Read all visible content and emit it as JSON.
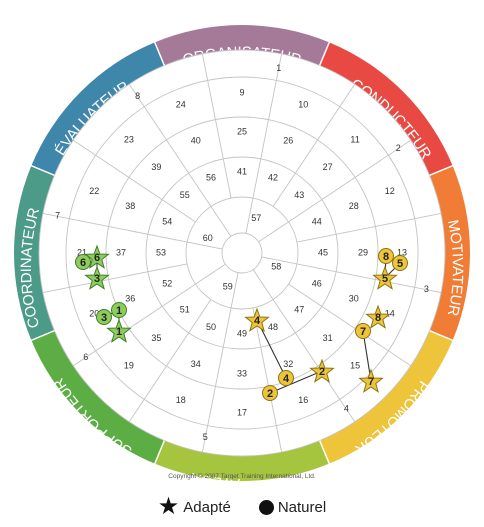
{
  "wheel": {
    "segments": [
      {
        "label": "ORGANISATEUR",
        "color": "#a47a98"
      },
      {
        "label": "CONDUCTEUR",
        "color": "#e84a43"
      },
      {
        "label": "MOTIVATEUR",
        "color": "#f07c35"
      },
      {
        "label": "PROMOTEUR",
        "color": "#eec43a"
      },
      {
        "label": "FACILITATEUR",
        "color": "#a6c53f"
      },
      {
        "label": "SUPPORTEUR",
        "color": "#5cae44"
      },
      {
        "label": "COORDINATEUR",
        "color": "#4c9a88"
      },
      {
        "label": "ÉVALUATEUR",
        "color": "#3f86ab"
      }
    ],
    "copyright": "Copyright © 2007 Target Training International, Ltd.",
    "position_numbers": {
      "ring4": [
        "1",
        "2",
        "3",
        "4",
        "5",
        "6",
        "7",
        "8"
      ],
      "ring3": [
        "9",
        "10",
        "11",
        "12",
        "13",
        "14",
        "15",
        "16",
        "17",
        "18",
        "19",
        "20",
        "21",
        "22",
        "23",
        "24"
      ],
      "ring2": [
        "25",
        "26",
        "27",
        "28",
        "29",
        "30",
        "31",
        "32",
        "33",
        "34",
        "35",
        "36",
        "37",
        "38",
        "39",
        "40"
      ],
      "ring1": [
        "41",
        "42",
        "43",
        "44",
        "45",
        "46",
        "47",
        "48",
        "49",
        "50",
        "51",
        "52",
        "53",
        "54",
        "55",
        "56"
      ],
      "core": [
        "57",
        "58",
        "59",
        "60"
      ]
    },
    "adapted_color": "#eec43a",
    "natural_color": "#8ecc5c"
  },
  "markers": {
    "yellow": [
      {
        "n": "8",
        "shape": "circle"
      },
      {
        "n": "5",
        "shape": "circle"
      },
      {
        "n": "5",
        "shape": "star"
      },
      {
        "n": "8",
        "shape": "star"
      },
      {
        "n": "7",
        "shape": "circle"
      },
      {
        "n": "7",
        "shape": "star"
      },
      {
        "n": "4",
        "shape": "star"
      },
      {
        "n": "4",
        "shape": "circle"
      },
      {
        "n": "2",
        "shape": "circle"
      },
      {
        "n": "2",
        "shape": "star"
      }
    ],
    "green": [
      {
        "n": "6",
        "shape": "circle"
      },
      {
        "n": "6",
        "shape": "star"
      },
      {
        "n": "3",
        "shape": "star"
      },
      {
        "n": "3",
        "shape": "circle"
      },
      {
        "n": "1",
        "shape": "circle"
      },
      {
        "n": "1",
        "shape": "star"
      }
    ]
  },
  "legend": {
    "adapted": "Adapté",
    "natural": "Naturel"
  }
}
